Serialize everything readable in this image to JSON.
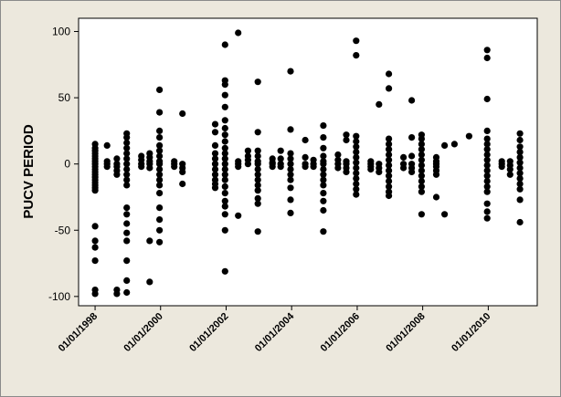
{
  "chart_data": {
    "type": "scatter",
    "title": "",
    "xlabel": "",
    "ylabel": "PUCV PERIOD",
    "xlim": [
      "1997-07-01",
      "2011-07-01"
    ],
    "ylim": [
      -107,
      110
    ],
    "y_ticks": [
      100,
      50,
      0,
      -50,
      -100
    ],
    "x_ticks": [
      "01/01/1998",
      "01/01/2000",
      "01/01/2002",
      "01/01/2004",
      "01/01/2006",
      "01/01/2008",
      "01/01/2010"
    ],
    "x_tick_dates": [
      "1998-01-01",
      "2000-01-01",
      "2002-01-01",
      "2004-01-01",
      "2006-01-01",
      "2008-01-01",
      "2010-01-01"
    ],
    "grid": false,
    "marker_color": "#000000",
    "columns": [
      {
        "date": "1998-01-01",
        "values": [
          15,
          12,
          10,
          8,
          6,
          4,
          2,
          0,
          -2,
          -4,
          -6,
          -8,
          -10,
          -12,
          -14,
          -16,
          -18,
          -20,
          -47,
          -58,
          -63,
          -73,
          -95,
          -98
        ]
      },
      {
        "date": "1998-05-15",
        "values": [
          14,
          2,
          0,
          -2
        ]
      },
      {
        "date": "1998-09-01",
        "values": [
          4,
          0,
          -2,
          -5,
          -8,
          -95,
          -98
        ]
      },
      {
        "date": "1998-12-20",
        "values": [
          23,
          20,
          16,
          12,
          8,
          4,
          0,
          -4,
          -8,
          -12,
          -16,
          -33,
          -38,
          -45,
          -52,
          -58,
          -73,
          -88,
          -97
        ]
      },
      {
        "date": "1999-06-01",
        "values": [
          6,
          3,
          0,
          -2
        ]
      },
      {
        "date": "1999-09-01",
        "values": [
          8,
          5,
          2,
          0,
          -3,
          -58,
          -89
        ]
      },
      {
        "date": "1999-12-20",
        "values": [
          56,
          39,
          25,
          20,
          14,
          10,
          6,
          2,
          0,
          -4,
          -8,
          -12,
          -16,
          -22,
          -33,
          -42,
          -50,
          -59
        ]
      },
      {
        "date": "2000-06-01",
        "values": [
          2,
          0,
          -2
        ]
      },
      {
        "date": "2000-09-01",
        "values": [
          38,
          0,
          -3,
          -6,
          -15
        ]
      },
      {
        "date": "2001-09-01",
        "values": [
          30,
          24,
          14,
          8,
          4,
          0,
          -4,
          -8,
          -12,
          -15,
          -18
        ]
      },
      {
        "date": "2001-12-20",
        "values": [
          90,
          63,
          60,
          52,
          43,
          33,
          27,
          22,
          17,
          12,
          8,
          4,
          0,
          -4,
          -8,
          -12,
          -17,
          -22,
          -28,
          -32,
          -38,
          -50,
          -81
        ]
      },
      {
        "date": "2002-05-15",
        "values": [
          99,
          2,
          0,
          -2,
          -39
        ]
      },
      {
        "date": "2002-09-01",
        "values": [
          10,
          6,
          3,
          0
        ]
      },
      {
        "date": "2002-12-20",
        "values": [
          62,
          24,
          10,
          6,
          2,
          0,
          -4,
          -8,
          -12,
          -16,
          -20,
          -26,
          -30,
          -51
        ]
      },
      {
        "date": "2003-06-01",
        "values": [
          4,
          1,
          0,
          -2
        ]
      },
      {
        "date": "2003-09-01",
        "values": [
          10,
          4,
          0,
          -2
        ]
      },
      {
        "date": "2003-12-20",
        "values": [
          70,
          26,
          8,
          4,
          0,
          -4,
          -8,
          -12,
          -18,
          -27,
          -37
        ]
      },
      {
        "date": "2004-06-01",
        "values": [
          18,
          5,
          0,
          -2
        ]
      },
      {
        "date": "2004-09-01",
        "values": [
          3,
          0,
          -2
        ]
      },
      {
        "date": "2004-12-20",
        "values": [
          29,
          20,
          12,
          6,
          2,
          0,
          -4,
          -8,
          -12,
          -16,
          -22,
          -28,
          -35,
          -51
        ]
      },
      {
        "date": "2005-06-01",
        "values": [
          7,
          3,
          0,
          -3
        ]
      },
      {
        "date": "2005-09-01",
        "values": [
          22,
          18,
          2,
          0,
          -3,
          -6
        ]
      },
      {
        "date": "2005-12-20",
        "values": [
          93,
          82,
          21,
          17,
          13,
          9,
          5,
          1,
          -3,
          -7,
          -11,
          -15,
          -19,
          -23
        ]
      },
      {
        "date": "2006-06-01",
        "values": [
          2,
          0,
          -2,
          -4
        ]
      },
      {
        "date": "2006-09-01",
        "values": [
          45,
          0,
          -3,
          -6
        ]
      },
      {
        "date": "2006-12-20",
        "values": [
          68,
          57,
          19,
          15,
          11,
          7,
          3,
          -1,
          -5,
          -9,
          -13,
          -17,
          -21,
          -24
        ]
      },
      {
        "date": "2007-06-01",
        "values": [
          5,
          0,
          -3
        ]
      },
      {
        "date": "2007-09-01",
        "values": [
          48,
          20,
          6,
          0,
          -3,
          -6
        ]
      },
      {
        "date": "2007-12-20",
        "values": [
          22,
          19,
          15,
          11,
          7,
          3,
          -1,
          -5,
          -9,
          -13,
          -17,
          -21,
          -38
        ]
      },
      {
        "date": "2008-06-01",
        "values": [
          5,
          2,
          0,
          -2,
          -5,
          -8,
          -25
        ]
      },
      {
        "date": "2008-09-01",
        "values": [
          14,
          -38
        ]
      },
      {
        "date": "2008-12-20",
        "values": [
          15
        ]
      },
      {
        "date": "2009-06-01",
        "values": [
          21
        ]
      },
      {
        "date": "2009-12-20",
        "values": [
          86,
          80,
          49,
          25,
          19,
          15,
          11,
          7,
          3,
          -1,
          -5,
          -9,
          -13,
          -17,
          -21,
          -30,
          -36,
          -41
        ]
      },
      {
        "date": "2010-06-01",
        "values": [
          2,
          0,
          -2
        ]
      },
      {
        "date": "2010-09-01",
        "values": [
          2,
          -1,
          -4,
          -8
        ]
      },
      {
        "date": "2010-12-20",
        "values": [
          23,
          18,
          13,
          9,
          5,
          1,
          -3,
          -7,
          -11,
          -15,
          -19,
          -27,
          -44
        ]
      }
    ]
  }
}
